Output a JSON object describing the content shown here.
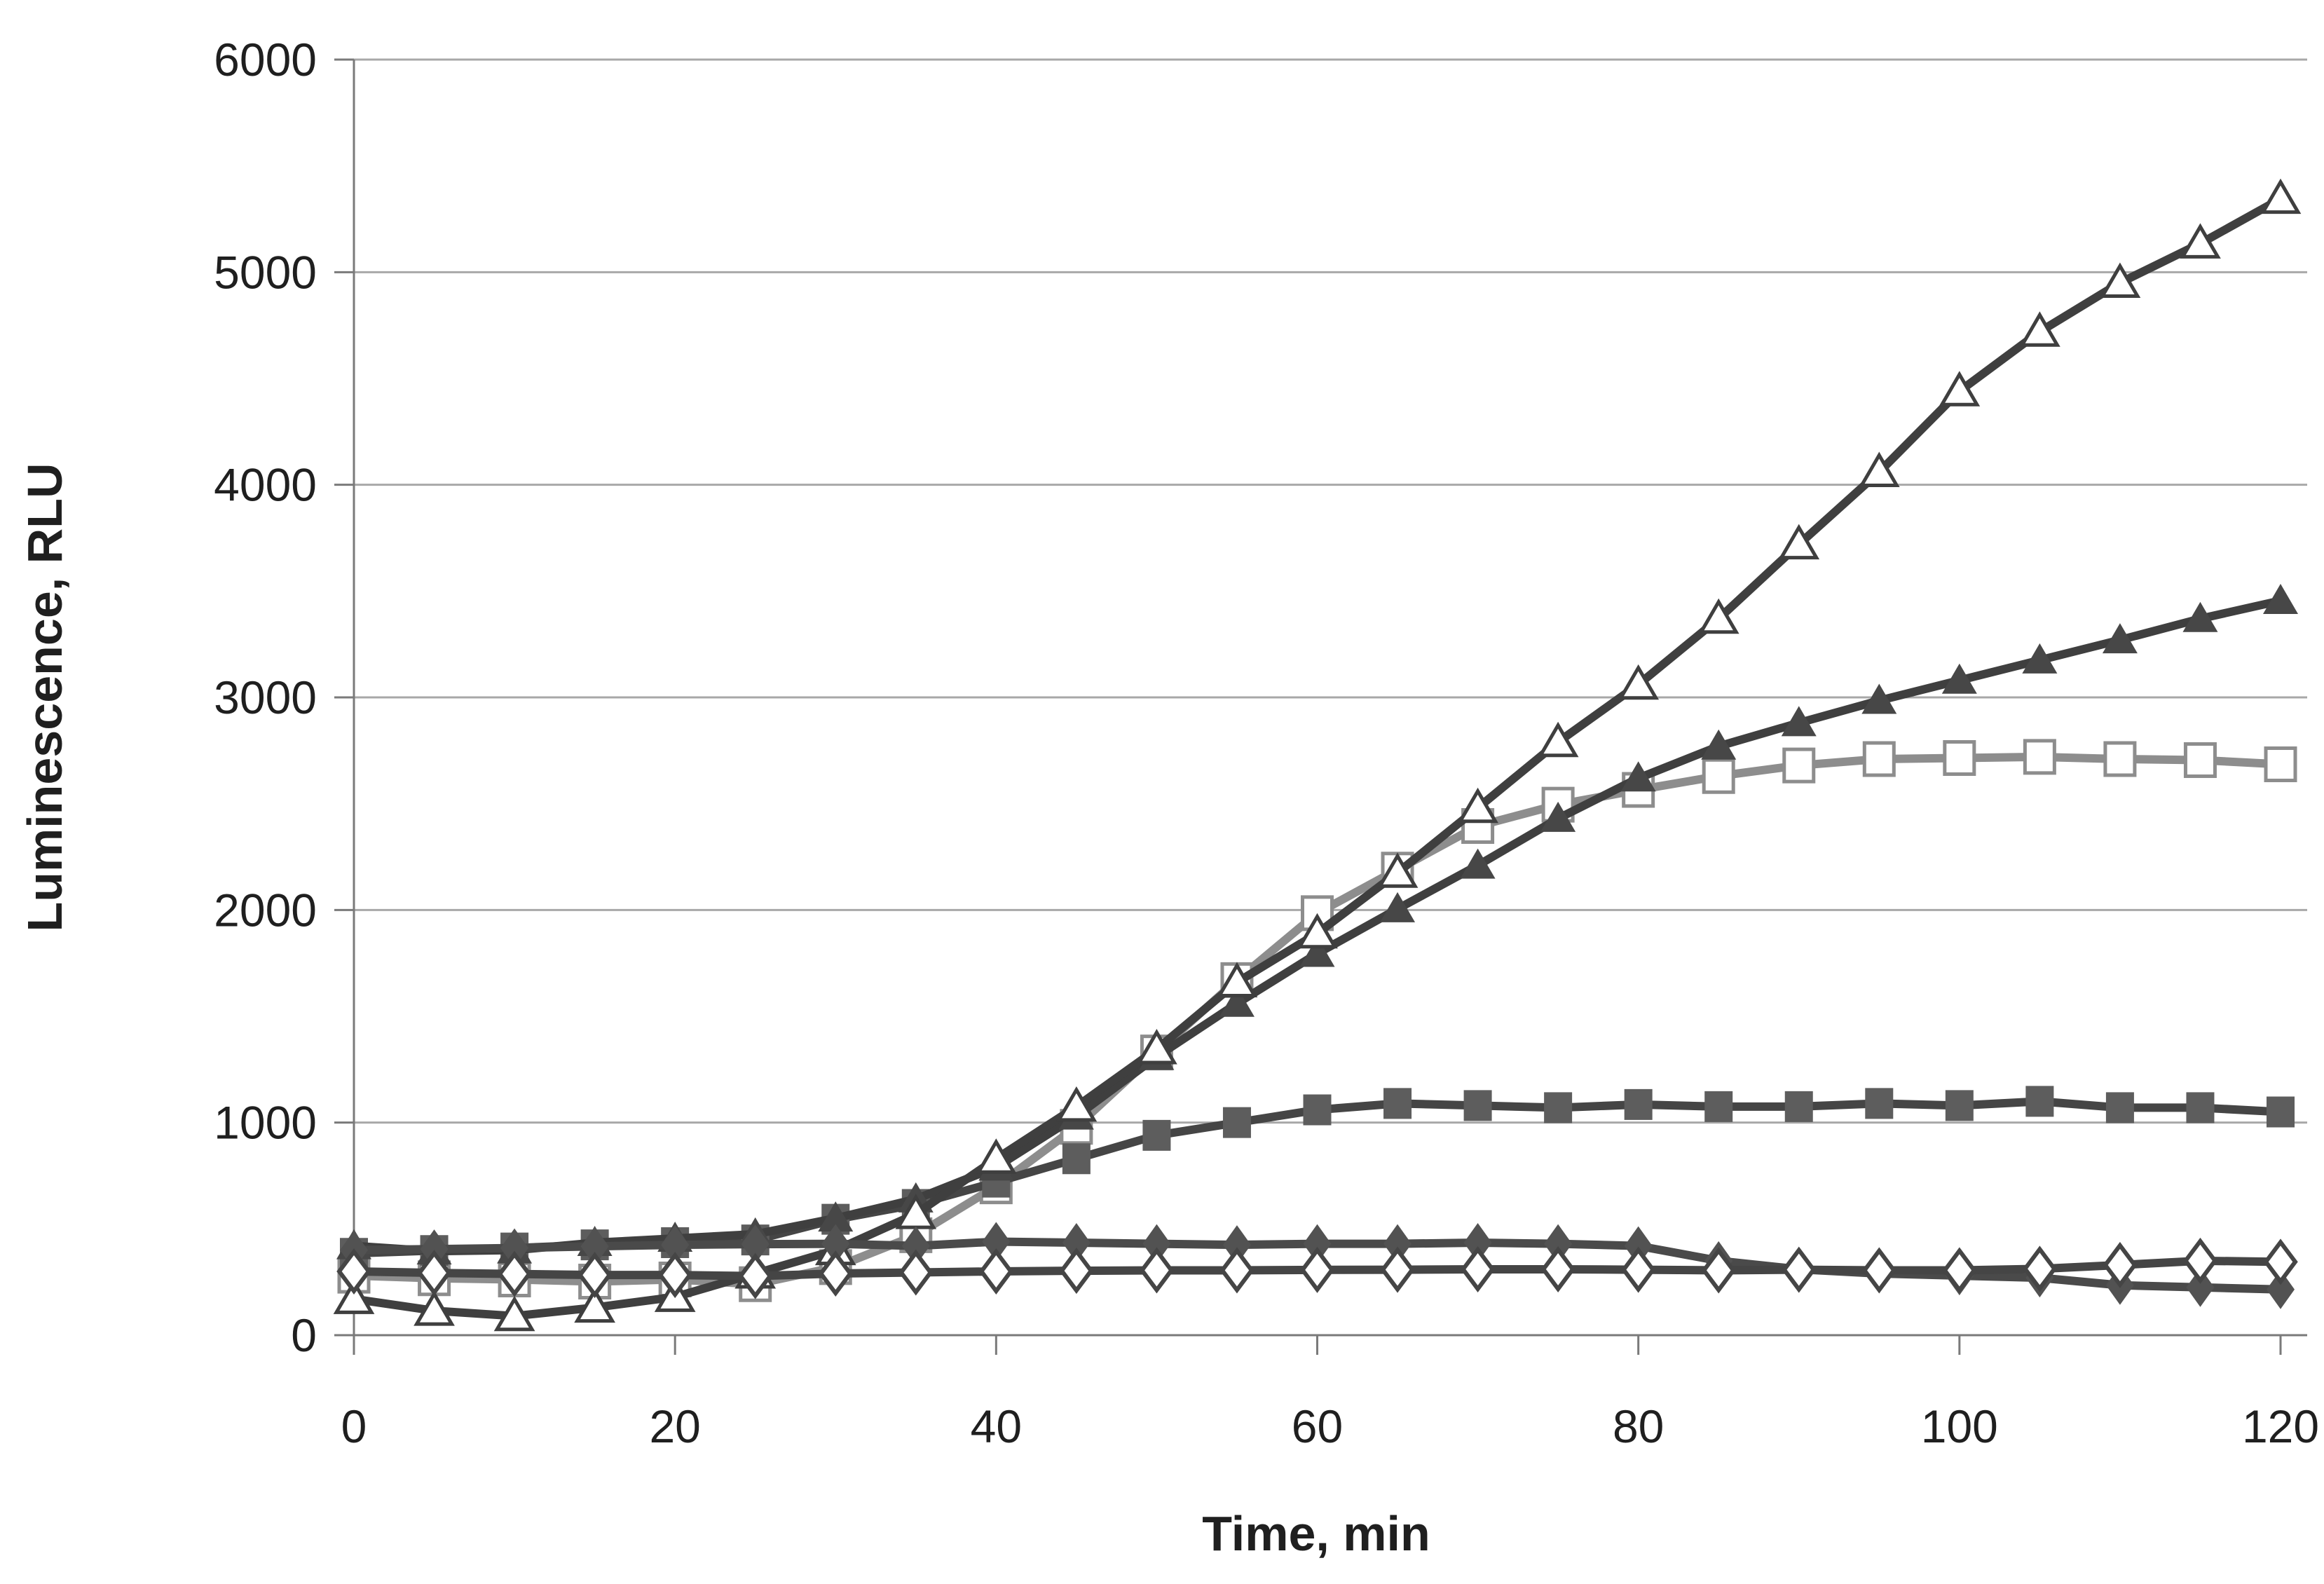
{
  "figure": {
    "title": "",
    "x_axis_title": "Time, min",
    "y_axis_title": "Luminescence, RLU"
  },
  "chart_data": {
    "type": "line",
    "title": "",
    "xlabel": "Time, min",
    "ylabel": "Luminescence, RLU",
    "xlim": [
      0,
      120
    ],
    "ylim": [
      0,
      6000
    ],
    "x_ticks": [
      0,
      20,
      40,
      60,
      80,
      100,
      120
    ],
    "y_ticks": [
      0,
      1000,
      2000,
      3000,
      4000,
      5000,
      6000
    ],
    "grid": "horizontal",
    "legend_position": "none",
    "background_color": "#ffffff",
    "grid_color": "#a8a8a8",
    "axis_color": "#7a7a7a",
    "text_color": "#1f1f1f",
    "x": [
      0,
      5,
      10,
      15,
      20,
      25,
      30,
      35,
      40,
      45,
      50,
      55,
      60,
      65,
      70,
      75,
      80,
      85,
      90,
      95,
      100,
      105,
      110,
      115,
      120
    ],
    "series": [
      {
        "name": "open-square",
        "marker": "open-square",
        "color": "#8d8d8d",
        "fill": "#ffffff",
        "values": [
          280,
          268,
          262,
          252,
          262,
          240,
          320,
          470,
          700,
          980,
          1330,
          1670,
          1985,
          2190,
          2395,
          2495,
          2565,
          2630,
          2680,
          2710,
          2715,
          2720,
          2710,
          2705,
          2685
        ]
      },
      {
        "name": "filled-square",
        "marker": "filled-square",
        "color": "#454545",
        "fill": "#5d5d5d",
        "values": [
          385,
          398,
          410,
          425,
          435,
          448,
          545,
          615,
          720,
          830,
          940,
          1000,
          1060,
          1090,
          1080,
          1070,
          1085,
          1075,
          1075,
          1090,
          1080,
          1100,
          1070,
          1070,
          1050
        ]
      },
      {
        "name": "filled-triangle",
        "marker": "filled-triangle",
        "color": "#3f3f3f",
        "fill": "#474747",
        "values": [
          420,
          395,
          400,
          435,
          455,
          475,
          550,
          640,
          790,
          1030,
          1310,
          1560,
          1795,
          2005,
          2210,
          2430,
          2620,
          2770,
          2880,
          2985,
          3080,
          3175,
          3270,
          3370,
          3455
        ]
      },
      {
        "name": "open-triangle",
        "marker": "open-triangle",
        "color": "#3f3f3f",
        "fill": "#ffffff",
        "values": [
          170,
          115,
          90,
          130,
          180,
          290,
          400,
          570,
          830,
          1075,
          1345,
          1660,
          1890,
          2175,
          2480,
          2790,
          3060,
          3370,
          3720,
          4060,
          4440,
          4720,
          4950,
          5135,
          5345
        ]
      },
      {
        "name": "filled-diamond",
        "marker": "filled-diamond",
        "color": "#4a4a4a",
        "fill": "#525252",
        "values": [
          400,
          405,
          410,
          418,
          425,
          428,
          430,
          420,
          440,
          435,
          430,
          425,
          430,
          430,
          435,
          430,
          420,
          350,
          310,
          290,
          280,
          270,
          235,
          225,
          215
        ]
      },
      {
        "name": "open-diamond",
        "marker": "open-diamond",
        "color": "#454545",
        "fill": "#ffffff",
        "values": [
          300,
          293,
          288,
          283,
          283,
          278,
          290,
          295,
          300,
          303,
          305,
          305,
          307,
          308,
          310,
          310,
          308,
          305,
          308,
          305,
          305,
          312,
          330,
          350,
          345
        ]
      }
    ]
  }
}
